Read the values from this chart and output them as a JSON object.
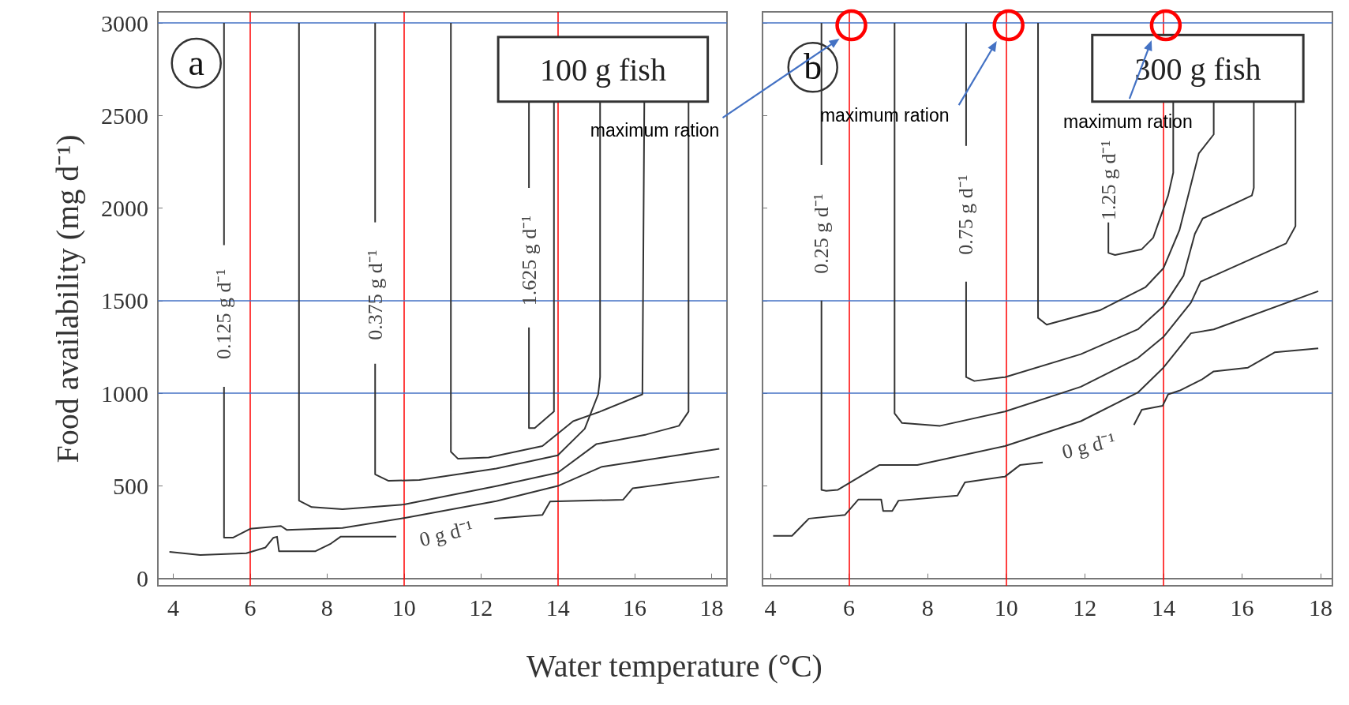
{
  "chart_data": [
    {
      "type": "line",
      "ylabel": "Food availability (mg d⁻¹)",
      "xlabel": "Water temperature (°C)",
      "xlim": [
        3.6,
        18.4
      ],
      "xticks": [
        4,
        6,
        8,
        10,
        12,
        14,
        16,
        18
      ],
      "ylim": [
        -40,
        3060
      ],
      "yticks": [
        0,
        500,
        1000,
        1500,
        2000,
        2500,
        3000
      ],
      "series": [
        {
          "color": "#333333",
          "x": [
            3.9,
            4.7,
            5.9,
            6.4,
            6.6,
            6.7,
            6.75,
            7.7,
            8.1,
            8.35,
            9.8
          ],
          "values": [
            143,
            126,
            136,
            167,
            219,
            225,
            147,
            147,
            188,
            225,
            225
          ]
        },
        {
          "color": "#333333",
          "x": [
            12.35,
            13.6,
            13.8,
            15.7,
            15.95,
            18.2
          ],
          "values": [
            322,
            343,
            415,
            425,
            487,
            549
          ]
        },
        {
          "color": "#333333",
          "x": [
            5.32,
            5.32
          ],
          "values": [
            3000,
            1800
          ]
        },
        {
          "color": "#333333",
          "x": [
            5.32,
            5.32,
            5.55,
            6,
            6.4,
            6.8,
            6.95,
            8.4,
            10,
            12.4,
            14,
            15.15,
            18.2
          ],
          "values": [
            1035,
            220,
            220,
            268,
            276,
            283,
            262,
            272,
            326,
            417,
            499,
            603,
            700
          ]
        },
        {
          "color": "#333333",
          "x": [
            7.27,
            7.27,
            7.6,
            8.4,
            10,
            12.4,
            14,
            15,
            16.3,
            17.15,
            17.4,
            17.4
          ],
          "values": [
            3000,
            420,
            385,
            374,
            399,
            498,
            571,
            725,
            777,
            824,
            901,
            2575
          ]
        },
        {
          "color": "#333333",
          "x": [
            9.25,
            9.25
          ],
          "values": [
            3000,
            1923
          ]
        },
        {
          "color": "#333333",
          "x": [
            9.25,
            9.25,
            9.6,
            10.4,
            12.4,
            14,
            14.7,
            15.05,
            15.1,
            15.1
          ],
          "values": [
            1159,
            562,
            527,
            531,
            593,
            665,
            808,
            994,
            1087,
            2575
          ]
        },
        {
          "color": "#333333",
          "x": [
            11.22,
            11.22,
            11.4,
            12.2,
            13.6,
            14.4,
            15.1,
            16.2,
            16.25
          ],
          "values": [
            3000,
            684,
            647,
            653,
            715,
            849,
            901,
            994,
            2575
          ]
        },
        {
          "color": "#333333",
          "x": [
            13.25,
            13.25
          ],
          "values": [
            2575,
            2109
          ]
        },
        {
          "color": "#333333",
          "x": [
            13.25,
            13.25,
            13.4,
            13.9,
            13.9
          ],
          "values": [
            1355,
            812,
            812,
            901,
            2575
          ]
        }
      ],
      "ref_lines": [
        {
          "axis": "x",
          "value": 6,
          "color": "#ff0000"
        },
        {
          "axis": "x",
          "value": 10,
          "color": "#ff0000"
        },
        {
          "axis": "x",
          "value": 14,
          "color": "#ff0000"
        },
        {
          "axis": "y",
          "value": 1000,
          "color": "#4472c4"
        },
        {
          "axis": "y",
          "value": 1500,
          "color": "#4472c4"
        },
        {
          "axis": "y",
          "value": 3000,
          "color": "#4472c4"
        }
      ],
      "annotations": [
        "a",
        "100 g fish",
        "0.125 g d⁻¹",
        "0.375 g d⁻¹",
        "1.625 g d⁻¹",
        "0 g d⁻¹"
      ]
    },
    {
      "type": "line",
      "tick_labels": "x",
      "xlim": [
        3.8,
        18.3
      ],
      "xticks": [
        4,
        6,
        8,
        10,
        12,
        14,
        16,
        18
      ],
      "ylim": [
        -40,
        3060
      ],
      "yticks": [
        0,
        500,
        1000,
        1500,
        2000,
        2500,
        3000
      ],
      "series": [
        {
          "color": "#333333",
          "x": [
            4.07,
            4.55,
            4.98,
            5.9,
            6.24,
            6.82,
            6.87,
            7.1,
            7.26,
            8.76,
            8.95,
            9.97,
            10.35,
            10.93
          ],
          "values": [
            230,
            230,
            323,
            343,
            426,
            426,
            364,
            364,
            420,
            447,
            519,
            550,
            612,
            626
          ]
        },
        {
          "color": "#333333",
          "x": [
            13.25,
            13.45,
            13.98,
            14.12,
            14.41,
            14.99,
            15.28,
            16.15,
            16.83,
            17.94
          ],
          "values": [
            829,
            911,
            932,
            994,
            1014,
            1076,
            1118,
            1138,
            1221,
            1242
          ]
        },
        {
          "color": "#333333",
          "x": [
            5.3,
            5.3
          ],
          "values": [
            3000,
            2233
          ]
        },
        {
          "color": "#333333",
          "x": [
            5.3,
            5.3,
            5.42,
            5.71,
            6.77,
            7.74,
            9.97,
            11.9,
            13.35,
            14,
            14.7,
            15.28,
            17.94
          ],
          "values": [
            1500,
            478,
            473,
            478,
            612,
            612,
            715,
            849,
            1004,
            1138,
            1324,
            1345,
            1551
          ]
        },
        {
          "color": "#333333",
          "x": [
            7.16,
            7.16,
            7.35,
            8.32,
            9.97,
            11.9,
            13.35,
            14,
            14.7,
            14.95,
            15.28,
            17.12,
            17.36,
            17.36
          ],
          "values": [
            3000,
            891,
            839,
            824,
            901,
            1035,
            1190,
            1304,
            1489,
            1603,
            1634,
            1809,
            1902,
            2575
          ]
        },
        {
          "color": "#333333",
          "x": [
            8.98,
            8.98
          ],
          "values": [
            3000,
            2336
          ]
        },
        {
          "color": "#333333",
          "x": [
            8.98,
            8.98,
            9.19,
            9.97,
            11.9,
            13.35,
            14,
            14.51,
            14.8,
            15,
            16.25,
            16.3,
            16.3
          ],
          "values": [
            1603,
            1087,
            1066,
            1087,
            1211,
            1345,
            1469,
            1634,
            1861,
            1944,
            2068,
            2109,
            2575
          ]
        },
        {
          "color": "#333333",
          "x": [
            10.81,
            10.81,
            11.03,
            12.38,
            13.54,
            14,
            14.41,
            14.9,
            15.28,
            15.28
          ],
          "values": [
            3000,
            1407,
            1370,
            1448,
            1572,
            1675,
            1882,
            2295,
            2398,
            2575
          ]
        },
        {
          "color": "#333333",
          "x": [
            12.6,
            12.6,
            12.77,
            13.45,
            13.74,
            14.12,
            14.25,
            14.25
          ],
          "values": [
            1923,
            1758,
            1747,
            1778,
            1840,
            2068,
            2191,
            2575
          ]
        }
      ],
      "ref_lines": [
        {
          "axis": "x",
          "value": 6,
          "color": "#ff0000"
        },
        {
          "axis": "x",
          "value": 10,
          "color": "#ff0000"
        },
        {
          "axis": "x",
          "value": 14,
          "color": "#ff0000"
        },
        {
          "axis": "y",
          "value": 1000,
          "color": "#4472c4"
        },
        {
          "axis": "y",
          "value": 1500,
          "color": "#4472c4"
        },
        {
          "axis": "y",
          "value": 3000,
          "color": "#4472c4"
        }
      ],
      "annotations": [
        "b",
        "300 g fish",
        "0.25 g d⁻¹",
        "0.75 g d⁻¹",
        "1.25 g d⁻¹",
        "0 g d⁻¹",
        "maximum ration",
        "maximum ration",
        "maximum ration"
      ]
    }
  ]
}
